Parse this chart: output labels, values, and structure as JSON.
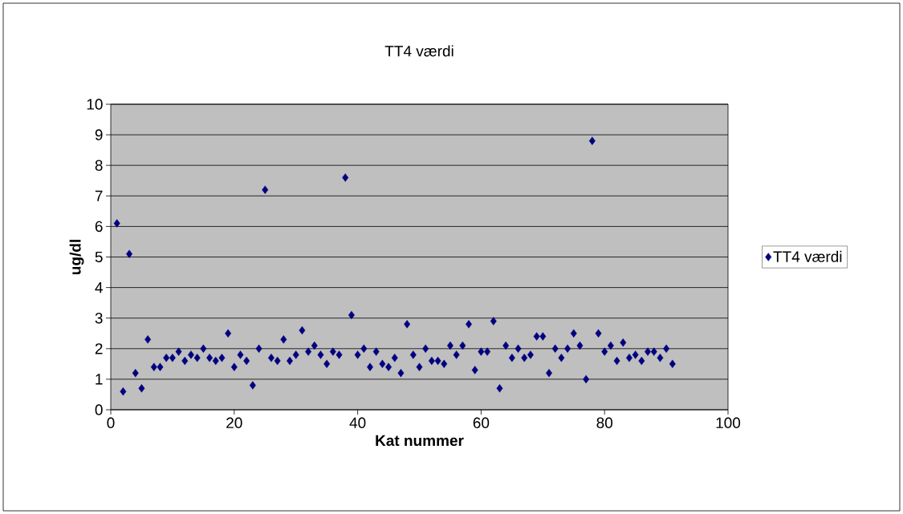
{
  "chart_data": {
    "type": "scatter",
    "title": "TT4 værdi",
    "xlabel": "Kat nummer",
    "ylabel": "ug/dl",
    "x": [
      1,
      2,
      3,
      4,
      5,
      6,
      7,
      8,
      9,
      10,
      11,
      12,
      13,
      14,
      15,
      16,
      17,
      18,
      19,
      20,
      21,
      22,
      23,
      24,
      25,
      26,
      27,
      28,
      29,
      30,
      31,
      32,
      33,
      34,
      35,
      36,
      37,
      38,
      39,
      40,
      41,
      42,
      43,
      44,
      45,
      46,
      47,
      48,
      49,
      50,
      51,
      52,
      53,
      54,
      55,
      56,
      57,
      58,
      59,
      60,
      61,
      62,
      63,
      64,
      65,
      66,
      67,
      68,
      69,
      70,
      71,
      72,
      73,
      74,
      75,
      76,
      77,
      78,
      79,
      80,
      81,
      82,
      83,
      84,
      85,
      86,
      87,
      88,
      89,
      90,
      91
    ],
    "series": [
      {
        "name": "TT4 værdi",
        "color": "#000080",
        "values": [
          6.1,
          0.6,
          5.1,
          1.2,
          0.7,
          2.3,
          1.4,
          1.4,
          1.7,
          1.7,
          1.9,
          1.6,
          1.8,
          1.7,
          2.0,
          1.7,
          1.6,
          1.7,
          2.5,
          1.4,
          1.8,
          1.6,
          0.8,
          2.0,
          7.2,
          1.7,
          1.6,
          2.3,
          1.6,
          1.8,
          2.6,
          1.9,
          2.1,
          1.8,
          1.5,
          1.9,
          1.8,
          7.6,
          3.1,
          1.8,
          2.0,
          1.4,
          1.9,
          1.5,
          1.4,
          1.7,
          1.2,
          2.8,
          1.8,
          1.4,
          2.0,
          1.6,
          1.6,
          1.5,
          2.1,
          1.8,
          2.1,
          2.8,
          1.3,
          1.9,
          1.9,
          2.9,
          0.7,
          2.1,
          1.7,
          2.0,
          1.7,
          1.8,
          2.4,
          2.4,
          1.2,
          2.0,
          1.7,
          2.0,
          2.5,
          2.1,
          1.0,
          8.8,
          2.5,
          1.9,
          2.1,
          1.6,
          2.2,
          1.7,
          1.8,
          1.6,
          1.9,
          1.9,
          1.7,
          2.0,
          1.5
        ]
      }
    ],
    "xlim": [
      0,
      100
    ],
    "xticks": [
      0,
      20,
      40,
      60,
      80,
      100
    ],
    "ylim": [
      0,
      10
    ],
    "yticks": [
      0,
      1,
      2,
      3,
      4,
      5,
      6,
      7,
      8,
      9,
      10
    ],
    "grid": "y",
    "legend": "right",
    "marker": "diamond"
  }
}
